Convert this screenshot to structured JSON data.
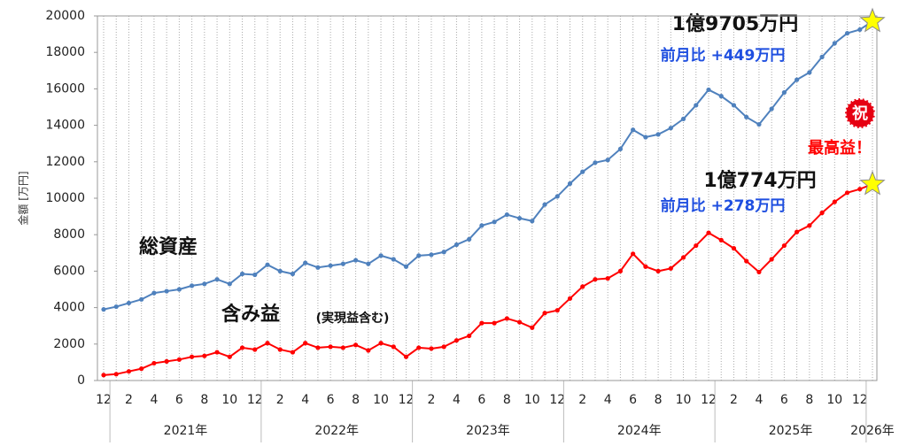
{
  "chart_data": {
    "type": "line",
    "y_label": "金額 [万円]",
    "ylim": [
      0,
      20000
    ],
    "yticks": [
      0,
      2000,
      4000,
      6000,
      8000,
      10000,
      12000,
      14000,
      16000,
      18000,
      20000
    ],
    "categories": [
      "12",
      null,
      "2",
      null,
      "4",
      null,
      "6",
      null,
      "8",
      null,
      "10",
      null,
      "12",
      null,
      "2",
      null,
      "4",
      null,
      "6",
      null,
      "8",
      null,
      "10",
      null,
      "12",
      null,
      "2",
      null,
      "4",
      null,
      "6",
      null,
      "8",
      null,
      "10",
      null,
      "12",
      null,
      "2",
      null,
      "4",
      null,
      "6",
      null,
      "8",
      null,
      "10",
      null,
      "12",
      null,
      "2",
      null,
      "4",
      null,
      "6",
      null,
      "8",
      null,
      "10",
      null,
      "12",
      null
    ],
    "years": [
      "2021年",
      "2022年",
      "2023年",
      "2024年",
      "2025年",
      "2026年"
    ],
    "grid": true,
    "series": [
      {
        "name": "総資産",
        "color": "#4f81bd",
        "values": [
          3900,
          4050,
          4250,
          4450,
          4800,
          4900,
          5000,
          5200,
          5300,
          5550,
          5300,
          5850,
          5800,
          6350,
          6000,
          5850,
          6450,
          6200,
          6300,
          6400,
          6600,
          6400,
          6850,
          6650,
          6250,
          6850,
          6900,
          7050,
          7450,
          7750,
          8500,
          8700,
          9100,
          8900,
          8750,
          9650,
          10100,
          10800,
          11450,
          11950,
          12100,
          12700,
          13750,
          13350,
          13500,
          13850,
          14350,
          15100,
          15950,
          15600,
          15100,
          14450,
          14050,
          14900,
          15800,
          16500,
          16900,
          17750,
          18500,
          19050,
          19250,
          19705
        ]
      },
      {
        "name": "含み益",
        "color": "#ff0000",
        "values": [
          300,
          350,
          500,
          650,
          950,
          1050,
          1150,
          1300,
          1350,
          1550,
          1300,
          1800,
          1700,
          2050,
          1700,
          1550,
          2050,
          1800,
          1850,
          1800,
          1950,
          1650,
          2050,
          1850,
          1300,
          1800,
          1750,
          1850,
          2200,
          2450,
          3150,
          3150,
          3400,
          3200,
          2900,
          3700,
          3850,
          4500,
          5150,
          5550,
          5600,
          6000,
          6950,
          6250,
          6000,
          6150,
          6750,
          7400,
          8100,
          7700,
          7250,
          6550,
          5950,
          6650,
          7400,
          8150,
          8500,
          9200,
          9800,
          10300,
          10500,
          10774
        ]
      }
    ],
    "series_note": "(実現益含む)",
    "annotations": [
      "1億9705万円",
      "前月比 +449万円",
      "1億774万円",
      "前月比 +278万円",
      "最高益！",
      "祝"
    ]
  }
}
